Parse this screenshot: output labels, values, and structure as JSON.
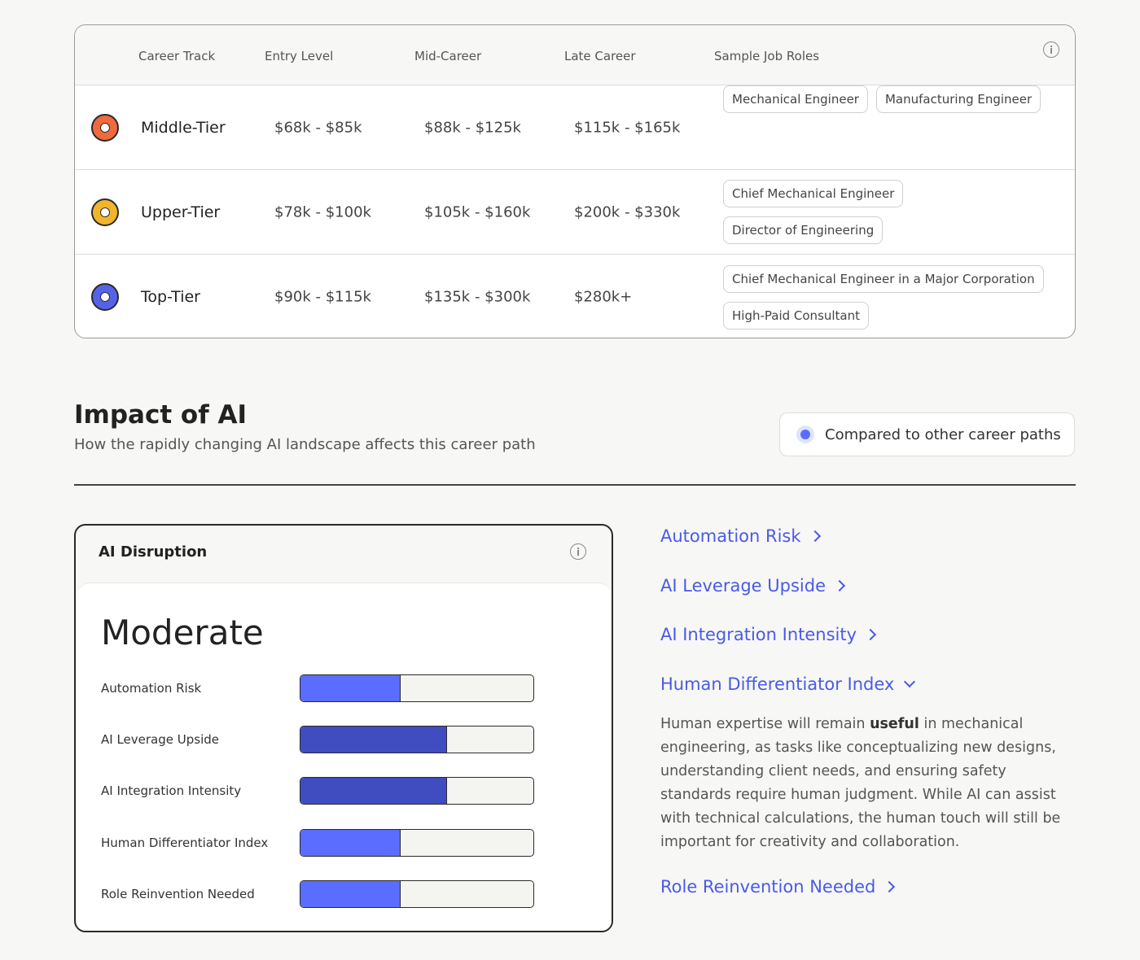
{
  "salary_table": {
    "headers": {
      "career_track": "Career Track",
      "entry": "Entry Level",
      "mid": "Mid-Career",
      "late": "Late Career",
      "roles": "Sample Job Roles"
    },
    "rows": [
      {
        "tier": "Middle-Tier",
        "color": "#ef6a3c",
        "entry": "$68k - $85k",
        "mid": "$88k - $125k",
        "late": "$115k - $165k",
        "roles": [
          "Mechanical Engineer",
          "Manufacturing Engineer"
        ]
      },
      {
        "tier": "Upper-Tier",
        "color": "#f1b52c",
        "entry": "$78k - $100k",
        "mid": "$105k - $160k",
        "late": "$200k - $330k",
        "roles": [
          "Chief Mechanical Engineer",
          "Director of Engineering"
        ]
      },
      {
        "tier": "Top-Tier",
        "color": "#5563e8",
        "entry": "$90k - $115k",
        "mid": "$135k - $300k",
        "late": "$280k+",
        "roles": [
          "Chief Mechanical Engineer in a Major Corporation",
          "High-Paid Consultant"
        ]
      }
    ]
  },
  "impact": {
    "title": "Impact of AI",
    "subtitle": "How the rapidly changing AI landscape affects this career path",
    "compare_label": "Compared to other career paths"
  },
  "disruption_card": {
    "title": "AI Disruption",
    "level": "Moderate",
    "metrics": [
      {
        "label": "Automation Risk",
        "fill_percent": 43,
        "color": "#5a6dff"
      },
      {
        "label": "AI Leverage Upside",
        "fill_percent": 63,
        "color": "#3f4dc0"
      },
      {
        "label": "AI Integration Intensity",
        "fill_percent": 63,
        "color": "#3f4dc0"
      },
      {
        "label": "Human Differentiator Index",
        "fill_percent": 43,
        "color": "#5a6dff"
      },
      {
        "label": "Role Reinvention Needed",
        "fill_percent": 43,
        "color": "#5a6dff"
      }
    ]
  },
  "links": [
    {
      "label": "Automation Risk",
      "expanded": false
    },
    {
      "label": "AI Leverage Upside",
      "expanded": false
    },
    {
      "label": "AI Integration Intensity",
      "expanded": false
    },
    {
      "label": "Human Differentiator Index",
      "expanded": true
    },
    {
      "label": "Role Reinvention Needed",
      "expanded": false
    }
  ],
  "description": {
    "before": "Human expertise will remain ",
    "bold": "useful",
    "after": " in mechanical engineering, as tasks like conceptualizing new designs, understanding client needs, and ensuring safety standards require human judgment. While AI can assist with technical calculations, the human touch will still be important for creativity and collaboration."
  },
  "colors": {
    "accent": "#4a5ae8"
  }
}
